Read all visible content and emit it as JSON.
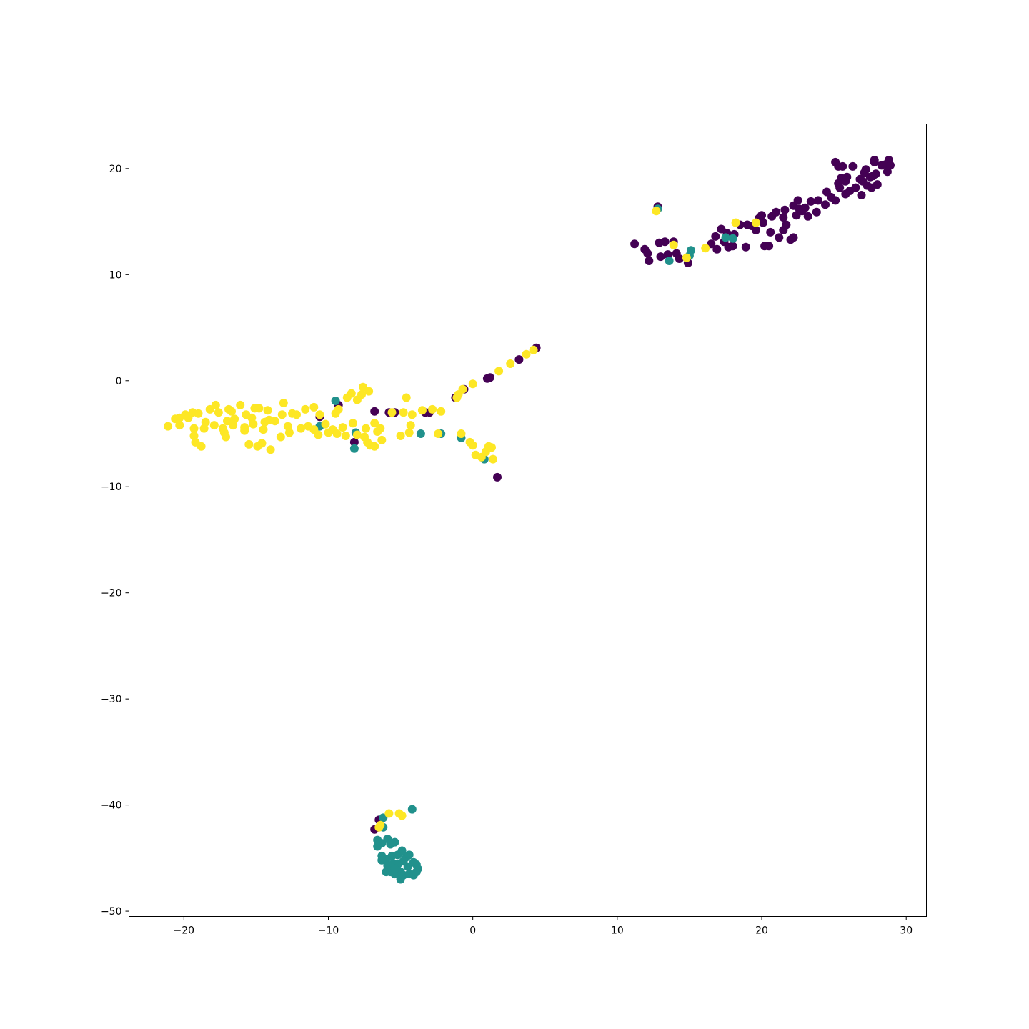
{
  "chart_data": {
    "type": "scatter",
    "title": "",
    "xlabel": "",
    "ylabel": "",
    "xlim": [
      -23.8,
      31.4
    ],
    "ylim": [
      -50.5,
      24.2
    ],
    "xticks": [
      -20,
      -10,
      0,
      10,
      20,
      30
    ],
    "yticks": [
      -50,
      -40,
      -30,
      -20,
      -10,
      0,
      10,
      20
    ],
    "xtick_labels": [
      "−20",
      "−10",
      "0",
      "10",
      "20",
      "30"
    ],
    "ytick_labels": [
      "−50",
      "−40",
      "−30",
      "−20",
      "−10",
      "0",
      "10",
      "20"
    ],
    "grid": false,
    "legend": "none",
    "colors": {
      "class_0": "#440154",
      "class_1": "#21918c",
      "class_2": "#fde725"
    },
    "series": [
      {
        "color_key": "class_0",
        "points": [
          [
            11.2,
            12.9
          ],
          [
            11.9,
            12.4
          ],
          [
            12.1,
            12.0
          ],
          [
            12.2,
            11.3
          ],
          [
            12.9,
            13.0
          ],
          [
            13.0,
            11.7
          ],
          [
            13.3,
            13.1
          ],
          [
            13.5,
            11.9
          ],
          [
            13.9,
            13.1
          ],
          [
            14.1,
            12.0
          ],
          [
            14.3,
            11.5
          ],
          [
            14.9,
            11.1
          ],
          [
            12.8,
            16.4
          ],
          [
            16.5,
            12.9
          ],
          [
            16.8,
            13.6
          ],
          [
            16.9,
            12.4
          ],
          [
            17.2,
            14.3
          ],
          [
            17.4,
            13.1
          ],
          [
            17.6,
            13.9
          ],
          [
            17.7,
            12.6
          ],
          [
            18.0,
            12.7
          ],
          [
            18.1,
            13.8
          ],
          [
            18.5,
            14.7
          ],
          [
            18.9,
            12.6
          ],
          [
            19.0,
            14.7
          ],
          [
            19.3,
            14.6
          ],
          [
            19.6,
            14.2
          ],
          [
            19.8,
            15.3
          ],
          [
            20.0,
            15.6
          ],
          [
            20.1,
            14.9
          ],
          [
            20.2,
            12.7
          ],
          [
            20.5,
            12.7
          ],
          [
            20.6,
            14.0
          ],
          [
            20.7,
            15.5
          ],
          [
            21.0,
            15.9
          ],
          [
            21.2,
            13.5
          ],
          [
            21.5,
            14.2
          ],
          [
            21.5,
            15.4
          ],
          [
            21.6,
            16.1
          ],
          [
            21.7,
            14.7
          ],
          [
            22.0,
            13.3
          ],
          [
            22.2,
            16.5
          ],
          [
            22.2,
            13.5
          ],
          [
            22.4,
            15.6
          ],
          [
            22.5,
            17.0
          ],
          [
            22.6,
            16.2
          ],
          [
            22.8,
            16.0
          ],
          [
            23.0,
            16.3
          ],
          [
            23.2,
            15.5
          ],
          [
            23.4,
            16.9
          ],
          [
            23.8,
            15.9
          ],
          [
            23.9,
            17.0
          ],
          [
            24.4,
            16.6
          ],
          [
            24.5,
            17.8
          ],
          [
            24.8,
            17.3
          ],
          [
            25.1,
            17.0
          ],
          [
            25.1,
            20.6
          ],
          [
            25.3,
            20.2
          ],
          [
            25.3,
            18.6
          ],
          [
            25.4,
            18.2
          ],
          [
            25.5,
            19.1
          ],
          [
            25.6,
            20.2
          ],
          [
            25.8,
            17.6
          ],
          [
            25.8,
            18.8
          ],
          [
            25.9,
            19.2
          ],
          [
            26.1,
            17.9
          ],
          [
            26.3,
            20.2
          ],
          [
            26.5,
            18.2
          ],
          [
            26.8,
            19.0
          ],
          [
            26.9,
            17.5
          ],
          [
            27.0,
            18.8
          ],
          [
            27.1,
            19.6
          ],
          [
            27.2,
            19.9
          ],
          [
            27.3,
            18.4
          ],
          [
            27.5,
            19.2
          ],
          [
            27.6,
            18.2
          ],
          [
            27.7,
            19.3
          ],
          [
            27.8,
            20.6
          ],
          [
            27.8,
            20.8
          ],
          [
            27.9,
            19.5
          ],
          [
            28.0,
            18.5
          ],
          [
            28.3,
            20.3
          ],
          [
            28.6,
            20.4
          ],
          [
            28.7,
            19.7
          ],
          [
            28.8,
            20.8
          ],
          [
            28.9,
            20.3
          ],
          [
            -10.6,
            -3.4
          ],
          [
            -9.3,
            -2.3
          ],
          [
            -8.2,
            -5.8
          ],
          [
            -6.8,
            -2.9
          ],
          [
            -5.8,
            -3.0
          ],
          [
            -5.4,
            -3.0
          ],
          [
            -3.3,
            -3.0
          ],
          [
            -3.0,
            -3.0
          ],
          [
            -0.6,
            -0.8
          ],
          [
            -1.2,
            -1.6
          ],
          [
            1.0,
            0.2
          ],
          [
            1.2,
            0.3
          ],
          [
            3.2,
            2.0
          ],
          [
            4.4,
            3.1
          ],
          [
            1.7,
            -9.1
          ],
          [
            -6.5,
            -41.4
          ],
          [
            -6.8,
            -42.3
          ]
        ]
      },
      {
        "color_key": "class_1",
        "points": [
          [
            12.8,
            16.2
          ],
          [
            13.6,
            11.3
          ],
          [
            15.1,
            12.3
          ],
          [
            15.0,
            11.8
          ],
          [
            17.5,
            13.5
          ],
          [
            18.0,
            13.4
          ],
          [
            -9.5,
            -1.9
          ],
          [
            -10.6,
            -4.3
          ],
          [
            -8.1,
            -4.9
          ],
          [
            -8.2,
            -6.4
          ],
          [
            -3.6,
            -5.0
          ],
          [
            -2.2,
            -5.0
          ],
          [
            -0.8,
            -5.4
          ],
          [
            0.8,
            -7.4
          ],
          [
            -4.2,
            -40.4
          ],
          [
            -6.2,
            -41.2
          ],
          [
            -6.2,
            -42.1
          ],
          [
            -6.6,
            -43.3
          ],
          [
            -6.3,
            -43.6
          ],
          [
            -6.6,
            -43.9
          ],
          [
            -5.9,
            -43.2
          ],
          [
            -5.7,
            -43.7
          ],
          [
            -5.4,
            -43.5
          ],
          [
            -6.3,
            -44.8
          ],
          [
            -6.0,
            -45.1
          ],
          [
            -5.6,
            -44.8
          ],
          [
            -5.2,
            -44.7
          ],
          [
            -4.9,
            -44.3
          ],
          [
            -4.6,
            -44.9
          ],
          [
            -4.4,
            -44.7
          ],
          [
            -6.3,
            -45.2
          ],
          [
            -5.9,
            -45.7
          ],
          [
            -5.5,
            -45.5
          ],
          [
            -5.2,
            -45.6
          ],
          [
            -4.8,
            -45.3
          ],
          [
            -4.5,
            -45.8
          ],
          [
            -4.1,
            -45.4
          ],
          [
            -3.9,
            -45.6
          ],
          [
            -3.8,
            -46.0
          ],
          [
            -6.0,
            -46.3
          ],
          [
            -5.7,
            -46.3
          ],
          [
            -5.4,
            -46.5
          ],
          [
            -5.0,
            -46.3
          ],
          [
            -4.8,
            -46.6
          ],
          [
            -4.4,
            -46.5
          ],
          [
            -4.1,
            -46.6
          ],
          [
            -3.9,
            -46.3
          ],
          [
            -5.0,
            -47.0
          ],
          [
            -5.4,
            -46.0
          ]
        ]
      },
      {
        "color_key": "class_2",
        "points": [
          [
            12.7,
            16.0
          ],
          [
            13.9,
            12.8
          ],
          [
            14.8,
            11.6
          ],
          [
            16.1,
            12.5
          ],
          [
            18.2,
            14.9
          ],
          [
            19.6,
            14.9
          ],
          [
            -21.1,
            -4.3
          ],
          [
            -20.6,
            -3.6
          ],
          [
            -20.3,
            -4.2
          ],
          [
            -20.3,
            -3.5
          ],
          [
            -19.9,
            -3.2
          ],
          [
            -19.7,
            -3.5
          ],
          [
            -19.4,
            -3.0
          ],
          [
            -19.3,
            -4.5
          ],
          [
            -19.3,
            -5.2
          ],
          [
            -19.2,
            -5.8
          ],
          [
            -19.0,
            -3.1
          ],
          [
            -18.8,
            -6.2
          ],
          [
            -18.6,
            -4.5
          ],
          [
            -18.5,
            -3.9
          ],
          [
            -18.2,
            -2.7
          ],
          [
            -17.9,
            -4.2
          ],
          [
            -17.8,
            -2.3
          ],
          [
            -17.6,
            -3.0
          ],
          [
            -17.3,
            -4.5
          ],
          [
            -17.2,
            -4.9
          ],
          [
            -17.1,
            -5.3
          ],
          [
            -17.0,
            -3.8
          ],
          [
            -16.9,
            -2.7
          ],
          [
            -16.7,
            -2.9
          ],
          [
            -16.6,
            -4.2
          ],
          [
            -16.5,
            -3.6
          ],
          [
            -16.1,
            -2.3
          ],
          [
            -15.8,
            -4.4
          ],
          [
            -15.8,
            -4.7
          ],
          [
            -15.7,
            -3.2
          ],
          [
            -15.5,
            -6.0
          ],
          [
            -15.3,
            -3.5
          ],
          [
            -15.2,
            -4.1
          ],
          [
            -15.1,
            -2.6
          ],
          [
            -14.9,
            -6.2
          ],
          [
            -14.8,
            -2.6
          ],
          [
            -14.6,
            -5.9
          ],
          [
            -14.5,
            -4.6
          ],
          [
            -14.4,
            -3.9
          ],
          [
            -14.2,
            -2.8
          ],
          [
            -14.1,
            -3.7
          ],
          [
            -14.0,
            -6.5
          ],
          [
            -13.7,
            -3.8
          ],
          [
            -13.3,
            -5.3
          ],
          [
            -13.2,
            -3.2
          ],
          [
            -13.1,
            -2.1
          ],
          [
            -12.8,
            -4.3
          ],
          [
            -12.7,
            -4.9
          ],
          [
            -12.5,
            -3.1
          ],
          [
            -12.2,
            -3.2
          ],
          [
            -11.9,
            -4.5
          ],
          [
            -11.6,
            -2.7
          ],
          [
            -11.4,
            -4.3
          ],
          [
            -11.0,
            -4.6
          ],
          [
            -11.0,
            -2.5
          ],
          [
            -10.7,
            -5.1
          ],
          [
            -10.6,
            -3.2
          ],
          [
            -10.2,
            -4.1
          ],
          [
            -10.0,
            -4.9
          ],
          [
            -9.7,
            -4.6
          ],
          [
            -9.5,
            -3.1
          ],
          [
            -9.4,
            -5.0
          ],
          [
            -9.3,
            -2.7
          ],
          [
            -9.0,
            -4.4
          ],
          [
            -8.8,
            -5.2
          ],
          [
            -8.7,
            -1.6
          ],
          [
            -8.4,
            -1.2
          ],
          [
            -8.3,
            -4.0
          ],
          [
            -8.0,
            -5.1
          ],
          [
            -8.0,
            -1.8
          ],
          [
            -7.7,
            -1.3
          ],
          [
            -7.6,
            -0.6
          ],
          [
            -7.5,
            -5.3
          ],
          [
            -7.4,
            -4.5
          ],
          [
            -7.3,
            -5.8
          ],
          [
            -7.2,
            -1.0
          ],
          [
            -7.1,
            -6.1
          ],
          [
            -6.8,
            -4.0
          ],
          [
            -6.8,
            -6.2
          ],
          [
            -6.6,
            -4.8
          ],
          [
            -6.4,
            -4.5
          ],
          [
            -6.3,
            -5.6
          ],
          [
            -5.6,
            -3.0
          ],
          [
            -5.0,
            -5.2
          ],
          [
            -4.8,
            -3.0
          ],
          [
            -4.6,
            -1.6
          ],
          [
            -4.4,
            -4.9
          ],
          [
            -4.3,
            -4.2
          ],
          [
            -4.2,
            -3.2
          ],
          [
            -3.5,
            -2.8
          ],
          [
            -2.8,
            -2.7
          ],
          [
            -2.2,
            -2.9
          ],
          [
            -2.4,
            -5.0
          ],
          [
            -1.1,
            -1.6
          ],
          [
            -1.0,
            -1.3
          ],
          [
            -0.7,
            -0.8
          ],
          [
            -0.8,
            -5.0
          ],
          [
            -0.2,
            -5.8
          ],
          [
            0.0,
            -6.1
          ],
          [
            0.2,
            -7.0
          ],
          [
            0.6,
            -7.2
          ],
          [
            0.0,
            -0.3
          ],
          [
            0.9,
            -6.7
          ],
          [
            1.1,
            -6.2
          ],
          [
            1.3,
            -6.3
          ],
          [
            1.4,
            -7.4
          ],
          [
            1.8,
            0.9
          ],
          [
            2.6,
            1.6
          ],
          [
            3.7,
            2.5
          ],
          [
            4.2,
            2.9
          ],
          [
            -6.4,
            -41.9
          ],
          [
            -6.5,
            -42.1
          ],
          [
            -5.8,
            -40.8
          ],
          [
            -5.1,
            -40.8
          ],
          [
            -4.9,
            -41.0
          ]
        ]
      }
    ]
  }
}
